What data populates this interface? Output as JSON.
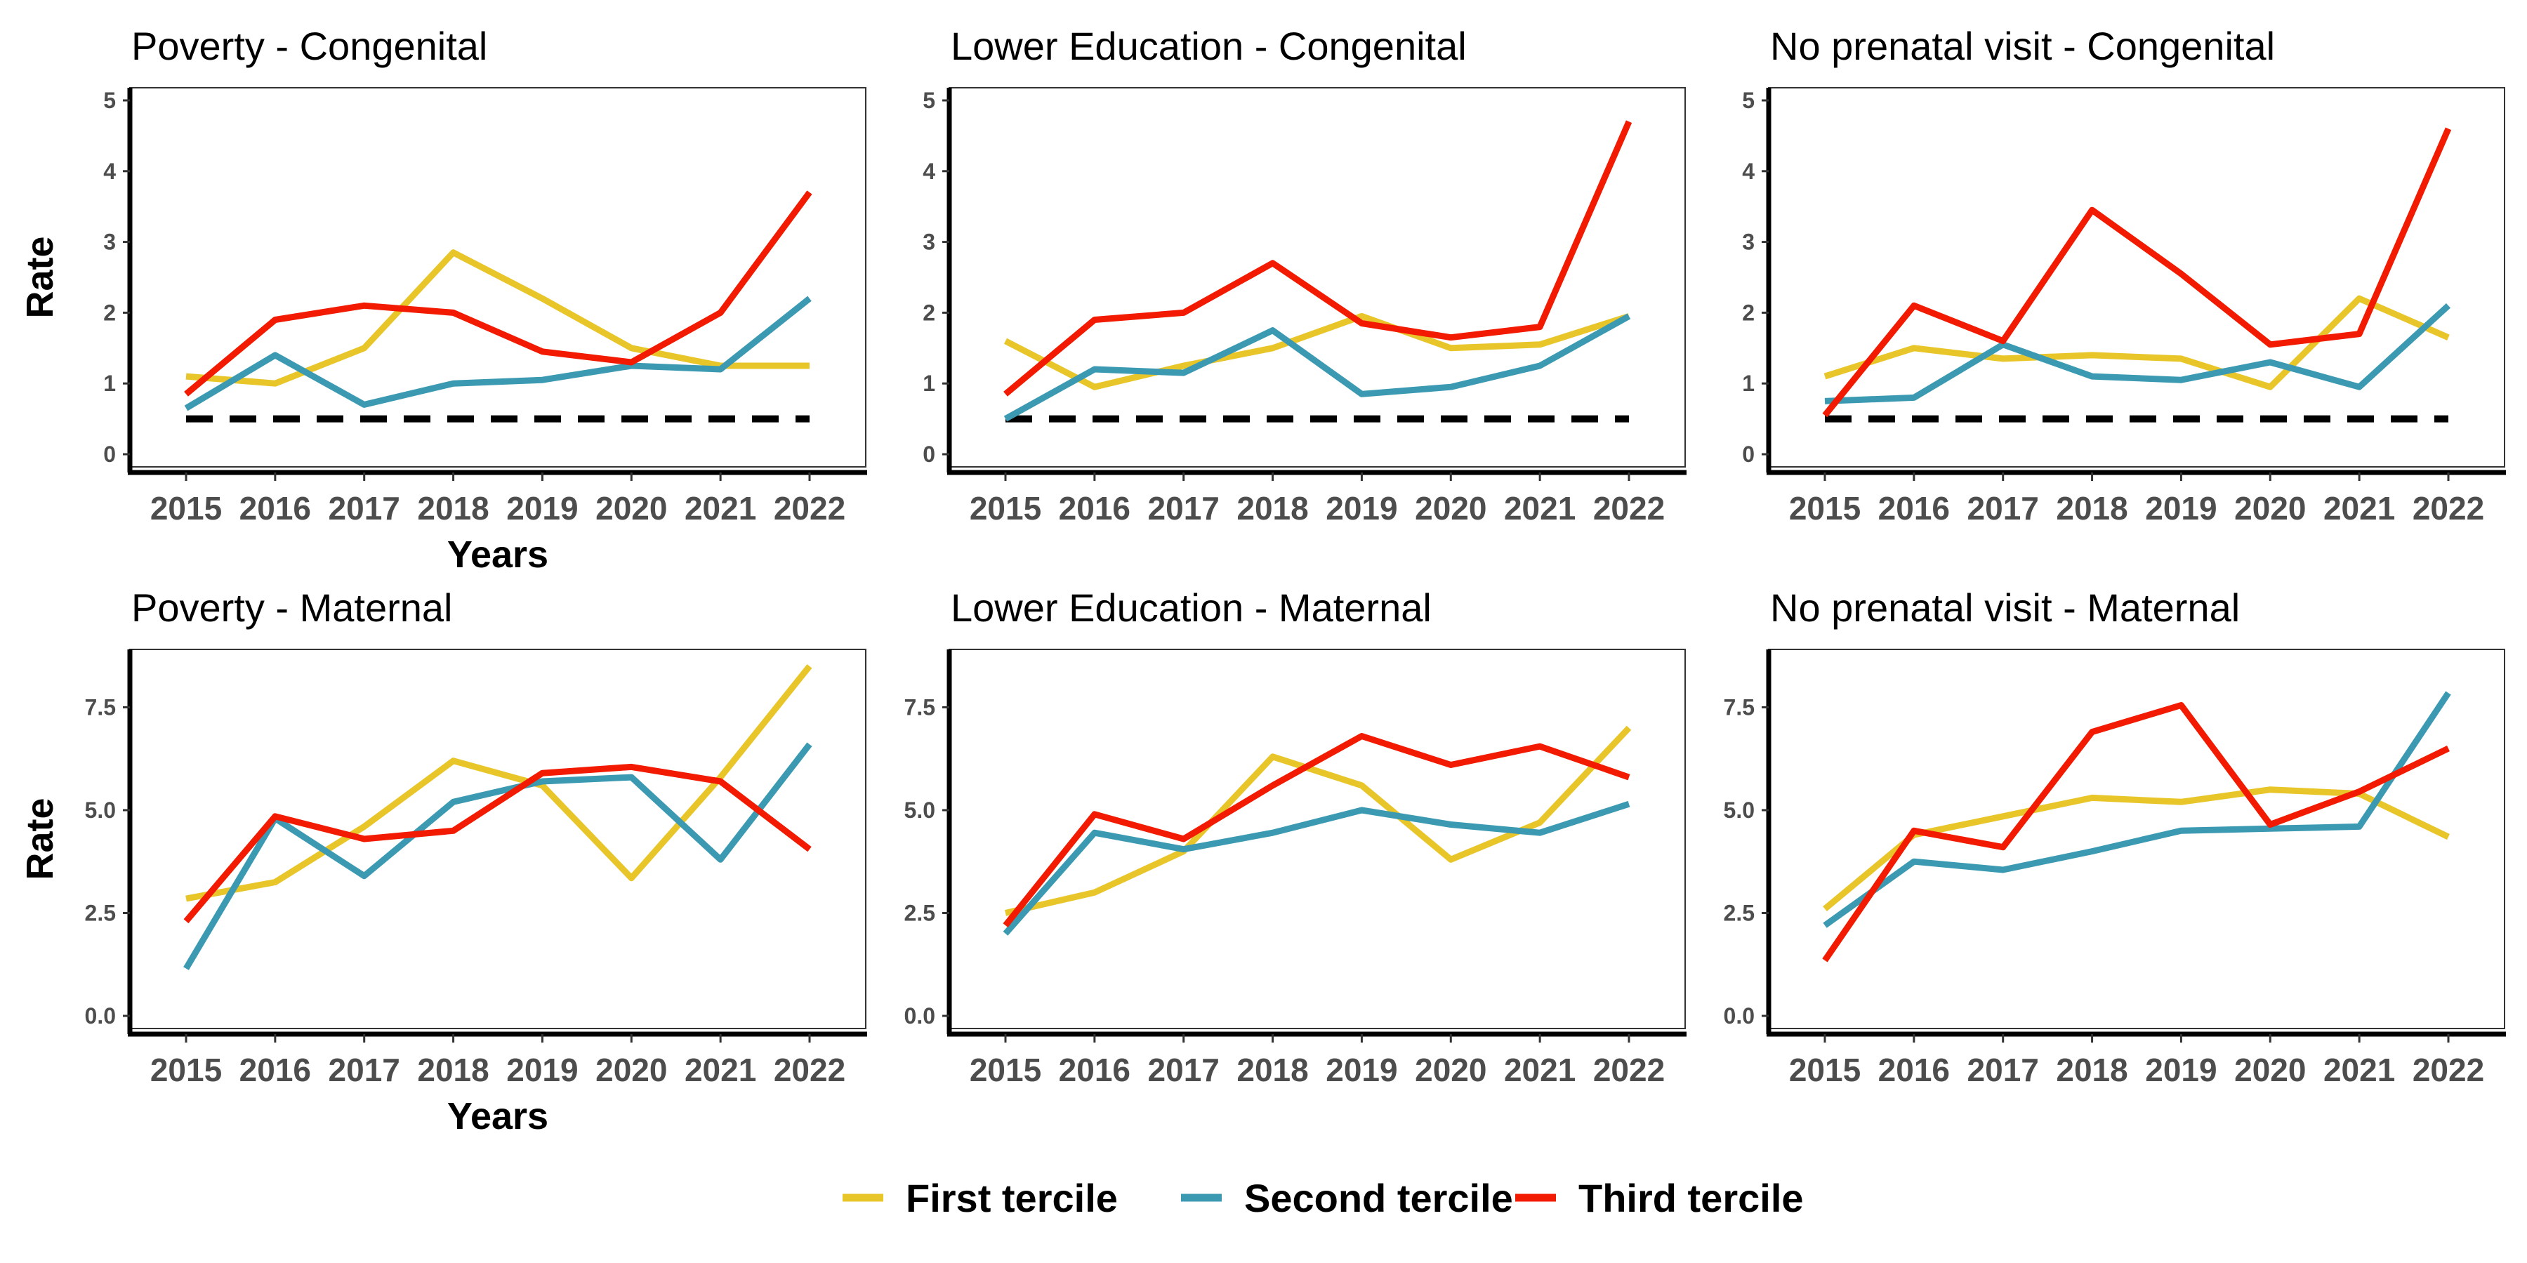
{
  "chart_data": [
    {
      "type": "line",
      "title": "Poverty - Congenital",
      "xlabel": "Years",
      "ylabel": "Rate",
      "x": [
        "2015",
        "2016",
        "2017",
        "2018",
        "2019",
        "2020",
        "2021",
        "2022"
      ],
      "ylim": [
        0,
        5
      ],
      "yticks": [
        "0",
        "1",
        "2",
        "3",
        "4",
        "5"
      ],
      "reference_line": 0.5,
      "series": [
        {
          "name": "First tercile",
          "values": [
            1.1,
            1.0,
            1.5,
            2.85,
            2.2,
            1.5,
            1.25,
            1.25
          ]
        },
        {
          "name": "Second tercile",
          "values": [
            0.65,
            1.4,
            0.7,
            1.0,
            1.05,
            1.25,
            1.2,
            2.2
          ]
        },
        {
          "name": "Third tercile",
          "values": [
            0.85,
            1.9,
            2.1,
            2.0,
            1.45,
            1.3,
            2.0,
            3.7
          ]
        }
      ]
    },
    {
      "type": "line",
      "title": "Lower Education - Congenital",
      "xlabel": "",
      "ylabel": "",
      "x": [
        "2015",
        "2016",
        "2017",
        "2018",
        "2019",
        "2020",
        "2021",
        "2022"
      ],
      "ylim": [
        0,
        5
      ],
      "yticks": [
        "0",
        "1",
        "2",
        "3",
        "4",
        "5"
      ],
      "reference_line": 0.5,
      "series": [
        {
          "name": "First tercile",
          "values": [
            1.6,
            0.95,
            1.25,
            1.5,
            1.95,
            1.5,
            1.55,
            1.95
          ]
        },
        {
          "name": "Second tercile",
          "values": [
            0.5,
            1.2,
            1.15,
            1.75,
            0.85,
            0.95,
            1.25,
            1.95
          ]
        },
        {
          "name": "Third tercile",
          "values": [
            0.85,
            1.9,
            2.0,
            2.7,
            1.85,
            1.65,
            1.8,
            4.7
          ]
        }
      ]
    },
    {
      "type": "line",
      "title": "No prenatal visit - Congenital",
      "xlabel": "",
      "ylabel": "",
      "x": [
        "2015",
        "2016",
        "2017",
        "2018",
        "2019",
        "2020",
        "2021",
        "2022"
      ],
      "ylim": [
        0,
        5
      ],
      "yticks": [
        "0",
        "1",
        "2",
        "3",
        "4",
        "5"
      ],
      "reference_line": 0.5,
      "series": [
        {
          "name": "First tercile",
          "values": [
            1.1,
            1.5,
            1.35,
            1.4,
            1.35,
            0.95,
            2.2,
            1.65
          ]
        },
        {
          "name": "Second tercile",
          "values": [
            0.75,
            0.8,
            1.55,
            1.1,
            1.05,
            1.3,
            0.95,
            2.1
          ]
        },
        {
          "name": "Third tercile",
          "values": [
            0.55,
            2.1,
            1.6,
            3.45,
            2.55,
            1.55,
            1.7,
            4.6
          ]
        }
      ]
    },
    {
      "type": "line",
      "title": "Poverty - Maternal",
      "xlabel": "Years",
      "ylabel": "Rate",
      "x": [
        "2015",
        "2016",
        "2017",
        "2018",
        "2019",
        "2020",
        "2021",
        "2022"
      ],
      "ylim": [
        0,
        8.6
      ],
      "yticks": [
        "0.0",
        "2.5",
        "5.0",
        "7.5"
      ],
      "series": [
        {
          "name": "First tercile",
          "values": [
            2.85,
            3.25,
            4.6,
            6.2,
            5.6,
            3.35,
            5.8,
            8.5
          ]
        },
        {
          "name": "Second tercile",
          "values": [
            1.15,
            4.8,
            3.4,
            5.2,
            5.7,
            5.8,
            3.8,
            6.6
          ]
        },
        {
          "name": "Third tercile",
          "values": [
            2.3,
            4.85,
            4.3,
            4.5,
            5.9,
            6.05,
            5.7,
            4.05
          ]
        }
      ]
    },
    {
      "type": "line",
      "title": "Lower Education - Maternal",
      "xlabel": "",
      "ylabel": "",
      "x": [
        "2015",
        "2016",
        "2017",
        "2018",
        "2019",
        "2020",
        "2021",
        "2022"
      ],
      "ylim": [
        0,
        8.6
      ],
      "yticks": [
        "0.0",
        "2.5",
        "5.0",
        "7.5"
      ],
      "series": [
        {
          "name": "First tercile",
          "values": [
            2.5,
            3.0,
            4.0,
            6.3,
            5.6,
            3.8,
            4.7,
            7.0
          ]
        },
        {
          "name": "Second tercile",
          "values": [
            2.0,
            4.45,
            4.05,
            4.45,
            5.0,
            4.65,
            4.45,
            5.15
          ]
        },
        {
          "name": "Third tercile",
          "values": [
            2.2,
            4.9,
            4.3,
            5.6,
            6.8,
            6.1,
            6.55,
            5.8
          ]
        }
      ]
    },
    {
      "type": "line",
      "title": "No prenatal visit - Maternal",
      "xlabel": "",
      "ylabel": "",
      "x": [
        "2015",
        "2016",
        "2017",
        "2018",
        "2019",
        "2020",
        "2021",
        "2022"
      ],
      "ylim": [
        0,
        8.6
      ],
      "yticks": [
        "0.0",
        "2.5",
        "5.0",
        "7.5"
      ],
      "series": [
        {
          "name": "First tercile",
          "values": [
            2.6,
            4.4,
            4.85,
            5.3,
            5.2,
            5.5,
            5.4,
            4.35
          ]
        },
        {
          "name": "Second tercile",
          "values": [
            2.2,
            3.75,
            3.55,
            4.0,
            4.5,
            4.55,
            4.6,
            7.85
          ]
        },
        {
          "name": "Third tercile",
          "values": [
            1.35,
            4.5,
            4.1,
            6.9,
            7.55,
            4.65,
            5.45,
            6.5
          ]
        }
      ]
    }
  ],
  "legend": {
    "items": [
      {
        "name": "First tercile",
        "color": "#E8C62A"
      },
      {
        "name": "Second tercile",
        "color": "#3B9AB2"
      },
      {
        "name": "Third tercile",
        "color": "#F21A00"
      }
    ]
  },
  "colors": {
    "First tercile": "#E8C62A",
    "Second tercile": "#3B9AB2",
    "Third tercile": "#F21A00",
    "reference_line": "#000000"
  }
}
